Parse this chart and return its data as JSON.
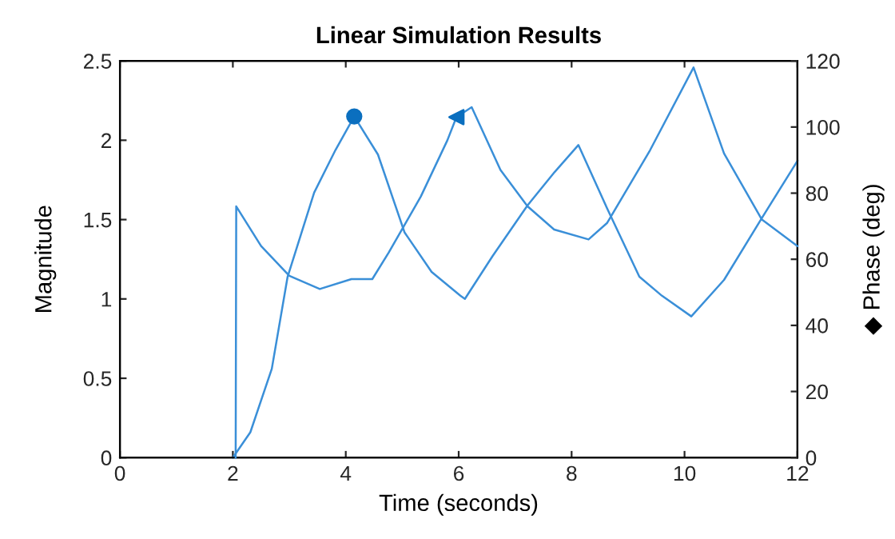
{
  "chart_data": {
    "type": "line",
    "title": "Linear Simulation Results",
    "xlabel": "Time (seconds)",
    "ylabel": "Magnitude",
    "y2label": "◆ Phase (deg)",
    "xlim": [
      0,
      12
    ],
    "xticks": [
      0,
      2,
      4,
      6,
      8,
      10,
      12
    ],
    "ylim": [
      0,
      2.5
    ],
    "yticks": [
      0,
      0.5,
      1,
      1.5,
      2,
      2.5
    ],
    "y2lim": [
      0,
      120
    ],
    "y2ticks": [
      0,
      20,
      40,
      60,
      80,
      100,
      120
    ],
    "grid": false,
    "legend": false,
    "series": [
      {
        "color": "#3a8fd8",
        "x": [
          2.0,
          2.31,
          2.69,
          2.97,
          3.44,
          3.82,
          4.15,
          4.57,
          5.04,
          5.52,
          6.03,
          6.11,
          6.6,
          7.22,
          7.7,
          8.12,
          8.63,
          9.2,
          9.6,
          10.12,
          10.7,
          11.37,
          12
        ],
        "values": [
          0,
          0.16,
          0.56,
          1.14,
          1.67,
          1.94,
          2.15,
          1.91,
          1.42,
          1.17,
          1.02,
          1.0,
          1.27,
          1.59,
          1.8,
          1.97,
          1.57,
          1.14,
          1.02,
          0.89,
          1.12,
          1.51,
          1.87
        ]
      },
      {
        "color": "#3a8fd8",
        "axis": "y2",
        "x": [
          2.05,
          2.06,
          2.5,
          3.0,
          3.54,
          4.1,
          4.47,
          4.76,
          5.33,
          5.8,
          5.96,
          6.23,
          6.74,
          7.22,
          7.69,
          8.3,
          8.63,
          9.39,
          10.16,
          10.7,
          11.37,
          12
        ],
        "values": [
          0,
          76,
          64,
          55,
          51,
          54,
          54,
          62,
          79,
          96,
          103,
          106,
          87,
          76,
          69,
          66,
          71,
          93,
          118,
          92,
          72,
          64
        ]
      },
      {
        "type": "scatter",
        "marker": "circle",
        "color": "#0b6fbf",
        "x": [
          4.15
        ],
        "values": [
          2.15
        ]
      },
      {
        "type": "scatter",
        "marker": "triangle",
        "axis": "y2",
        "color": "#0b6fbf",
        "x": [
          5.96
        ],
        "values": [
          103
        ]
      }
    ]
  }
}
